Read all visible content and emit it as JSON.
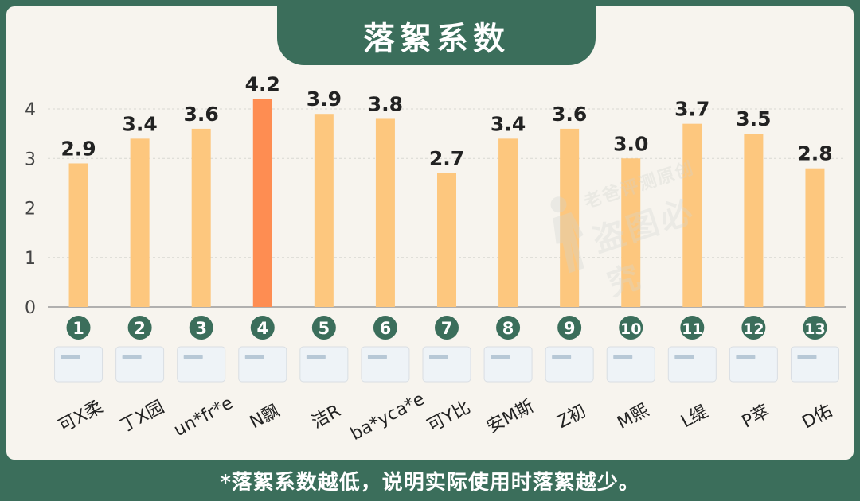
{
  "title": "落絮系数",
  "footer_note": "*落絮系数越低，说明实际使用时落絮越少。",
  "watermark": "老爸评测原创 盗图必究",
  "colors": {
    "background": "#3b6e5b",
    "panel": "#f7f4ee",
    "bar": "#fdc77e",
    "bar_highlight": "#fe8d52",
    "badge": "#3b6e5b"
  },
  "chart_data": {
    "type": "bar",
    "title": "落絮系数",
    "categories": [
      "可X柔",
      "丁X园",
      "un*fr*e",
      "N飘",
      "洁R",
      "ba*yca*e",
      "可Y比",
      "安M斯",
      "Z初",
      "M熙",
      "L缇",
      "P萃",
      "D佑"
    ],
    "badges": [
      "1",
      "2",
      "3",
      "4",
      "5",
      "6",
      "7",
      "8",
      "9",
      "10",
      "11",
      "12",
      "13"
    ],
    "values": [
      2.9,
      3.4,
      3.6,
      4.2,
      3.9,
      3.8,
      2.7,
      3.4,
      3.6,
      3.0,
      3.7,
      3.5,
      2.8
    ],
    "value_labels": [
      "2.9",
      "3.4",
      "3.6",
      "4.2",
      "3.9",
      "3.8",
      "2.7",
      "3.4",
      "3.6",
      "3.0",
      "3.7",
      "3.5",
      "2.8"
    ],
    "highlight_index": 3,
    "yticks": [
      "0",
      "1",
      "2",
      "3",
      "4"
    ],
    "ylim": [
      0,
      4
    ],
    "grid": true,
    "xlabel": "",
    "ylabel": ""
  }
}
